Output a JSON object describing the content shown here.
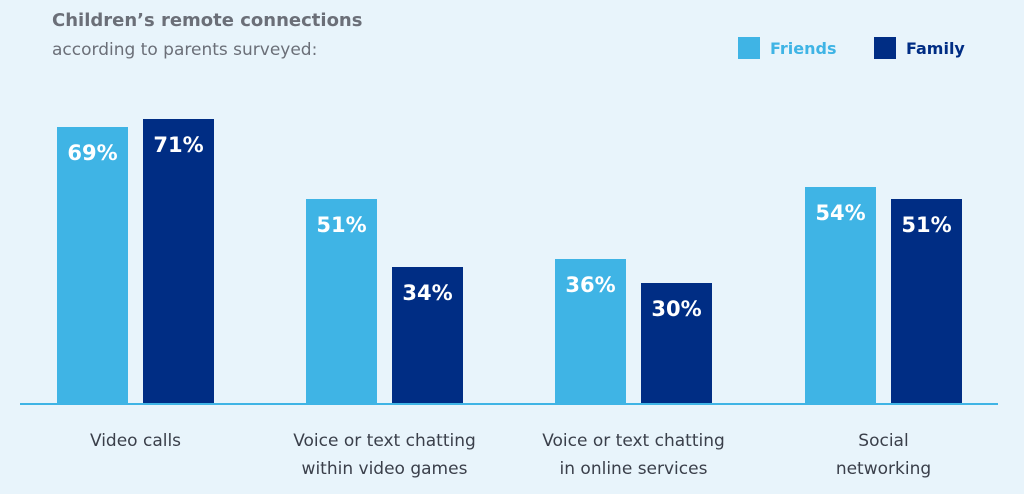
{
  "chart_data": {
    "type": "bar",
    "title": "Children’s remote connections",
    "subtitle": "according to parents surveyed:",
    "categories": [
      [
        "Video calls"
      ],
      [
        "Voice or text chatting",
        "within video games"
      ],
      [
        "Voice or text chatting",
        "in online services"
      ],
      [
        "Social",
        "networking"
      ]
    ],
    "series": [
      {
        "name": "Friends",
        "values": [
          69,
          51,
          36,
          54
        ],
        "color": "#3fb4e5"
      },
      {
        "name": "Family",
        "values": [
          71,
          34,
          30,
          51
        ],
        "color": "#002d84"
      }
    ],
    "value_suffix": "%",
    "ylim": [
      0,
      100
    ],
    "grid": false,
    "legend": "top-right"
  },
  "colors": {
    "background": "#e8f4fb",
    "axis": "#3fb4e5",
    "title": "#6b6f78",
    "category_label": "#3a3f4a",
    "bar_label": "#ffffff"
  }
}
